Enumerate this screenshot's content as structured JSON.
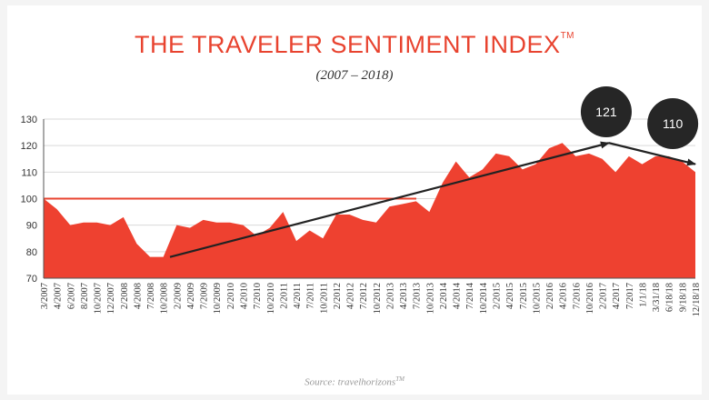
{
  "title": "THE TRAVELER SENTIMENT INDEX",
  "title_mark": "TM",
  "subtitle": "(2007 – 2018)",
  "source_prefix": "Source: travelhorizons",
  "source_mark": "TM",
  "colors": {
    "area": "#ee4130",
    "baseline": "#e8432f",
    "trend": "#222222",
    "bubble": "#262626",
    "grid": "#d9d9d9",
    "title": "#e8432f"
  },
  "chart_data": {
    "type": "area",
    "title": "THE TRAVELER SENTIMENT INDEX",
    "subtitle": "(2007 – 2018)",
    "ylim": [
      70,
      130
    ],
    "yticks": [
      70,
      80,
      90,
      100,
      110,
      120,
      130
    ],
    "grid": true,
    "xtick_labels": [
      "3/2007",
      "4/2007",
      "6/2007",
      "8/2007",
      "10/2007",
      "12/2007",
      "2/2008",
      "4/2008",
      "7/2008",
      "10/2008",
      "2/2009",
      "4/2009",
      "7/2009",
      "10/2009",
      "2/2010",
      "4/2010",
      "7/2010",
      "10/2010",
      "2/2011",
      "4/2011",
      "7/2011",
      "10/2011",
      "2/2012",
      "4/2012",
      "7/2012",
      "10/2012",
      "2/2013",
      "4/2013",
      "7/2013",
      "10/2013",
      "2/2014",
      "4/2014",
      "7/2014",
      "10/2014",
      "2/2015",
      "4/2015",
      "7/2015",
      "10/2015",
      "2/2016",
      "4/2016",
      "7/2016",
      "10/2016",
      "2/2017",
      "4/2017",
      "7/2017",
      "1/1/18",
      "3/31/18",
      "6/18/18",
      "9/18/18",
      "12/18/18"
    ],
    "values": [
      100,
      96,
      90,
      91,
      91,
      90,
      93,
      83,
      78,
      78,
      90,
      89,
      92,
      91,
      91,
      90,
      86,
      89,
      95,
      84,
      88,
      85,
      94,
      94,
      92,
      91,
      97,
      98,
      99,
      95,
      106,
      114,
      108,
      111,
      117,
      116,
      111,
      113,
      119,
      121,
      116,
      117,
      115,
      110,
      116,
      113,
      116,
      116,
      114,
      110
    ],
    "reference_line": 100,
    "trend_line": {
      "start_index": 9.5,
      "start_value": 78,
      "peak_index": 42.5,
      "peak_value": 121,
      "end_index": 49,
      "end_value": 113
    },
    "annotations": [
      {
        "label": "121",
        "index": 42.3
      },
      {
        "label": "110",
        "index": 47.3
      }
    ]
  }
}
